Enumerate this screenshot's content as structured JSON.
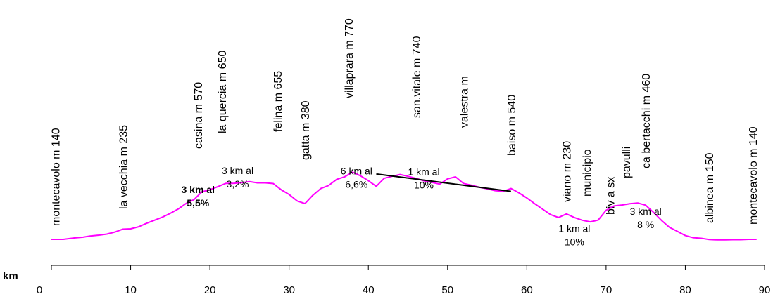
{
  "chart_data": {
    "type": "line",
    "xlabel": "km",
    "xlim": [
      0,
      90
    ],
    "x_ticks": [
      "0",
      "10",
      "20",
      "30",
      "40",
      "50",
      "60",
      "70",
      "80",
      "90"
    ],
    "series": [
      {
        "color": "#ff00ff",
        "x": [
          0,
          1.5,
          3,
          4,
          5,
          6,
          7,
          8,
          9,
          10,
          11,
          12,
          13,
          14,
          15,
          16,
          17,
          18,
          19,
          20,
          21,
          22,
          23,
          24,
          25,
          26,
          27,
          28,
          29,
          30,
          31,
          32,
          33,
          34,
          35,
          36,
          37,
          38,
          39,
          40,
          41,
          42,
          43,
          44,
          45,
          46,
          47,
          48,
          49,
          50,
          51,
          52,
          53,
          54,
          55,
          56,
          57,
          58,
          59,
          60,
          61,
          62,
          63,
          64,
          65,
          66,
          67,
          68,
          69,
          70,
          71,
          72,
          73,
          74,
          75,
          76,
          77,
          78,
          79,
          80,
          81,
          82,
          83,
          84,
          85,
          86,
          87,
          88,
          89
        ],
        "y": [
          140,
          140,
          148,
          152,
          159,
          163,
          169,
          180,
          196,
          198,
          209,
          228,
          245,
          262,
          283,
          307,
          338,
          359,
          402,
          413,
          430,
          448,
          448,
          452,
          458,
          451,
          451,
          447,
          413,
          387,
          352,
          337,
          383,
          420,
          437,
          470,
          484,
          510,
          490,
          463,
          432,
          476,
          487,
          497,
          487,
          476,
          462,
          454,
          444,
          473,
          484,
          448,
          438,
          427,
          418,
          408,
          404,
          420,
          396,
          368,
          336,
          306,
          276,
          260,
          280,
          260,
          245,
          236,
          246,
          300,
          324,
          329,
          336,
          340,
          328,
          288,
          244,
          206,
          184,
          161,
          149,
          146,
          139,
          137,
          137,
          138,
          138,
          140,
          140
        ]
      },
      {
        "color": "#000000",
        "x": [
          41,
          58
        ],
        "y": [
          500,
          404
        ]
      }
    ],
    "annotations": {
      "places": [
        {
          "text": "montecavolo m 140",
          "x": 0.5
        },
        {
          "text": "la vecchia m 235",
          "x": 9
        },
        {
          "text": "casina  m 570",
          "x": 18.5
        },
        {
          "text": "la quercia m 650",
          "x": 21.5
        },
        {
          "text": "felina  m 655",
          "x": 28.5
        },
        {
          "text": "gatta  m 380",
          "x": 32
        },
        {
          "text": "villaprara m 770",
          "x": 37.5
        },
        {
          "text": "san.vitale m 740",
          "x": 46
        },
        {
          "text": "valestra m",
          "x": 52
        },
        {
          "text": "baiso m 540",
          "x": 58
        },
        {
          "text": "viano m 230",
          "x": 65
        },
        {
          "text": "municipio",
          "x": 67.5
        },
        {
          "text": "biv a sx",
          "x": 70.5
        },
        {
          "text": "pavulli",
          "x": 72.5
        },
        {
          "text": "ca bertacchi m 460",
          "x": 75
        },
        {
          "text": "albinea m 150",
          "x": 83
        },
        {
          "text": "montecavolo m 140",
          "x": 88.5
        }
      ],
      "gradients": [
        {
          "line1": "3 km al",
          "line2": "5,5%",
          "bold": true,
          "x": 18.5,
          "y": 255
        },
        {
          "line1": "3 km al",
          "line2": "3,2%",
          "bold": false,
          "x": 23.5,
          "y": 360
        },
        {
          "line1": "6 km al",
          "line2": "6,6%",
          "bold": false,
          "x": 38.5,
          "y": 358
        },
        {
          "line1": "1 km al",
          "line2": "10%",
          "bold": false,
          "x": 47,
          "y": 353
        },
        {
          "line1": "1 km al",
          "line2": "10%",
          "bold": false,
          "x": 66,
          "y": 40
        },
        {
          "line1": "3 km al",
          "line2": "8 %",
          "bold": false,
          "x": 75,
          "y": 135
        }
      ]
    }
  }
}
